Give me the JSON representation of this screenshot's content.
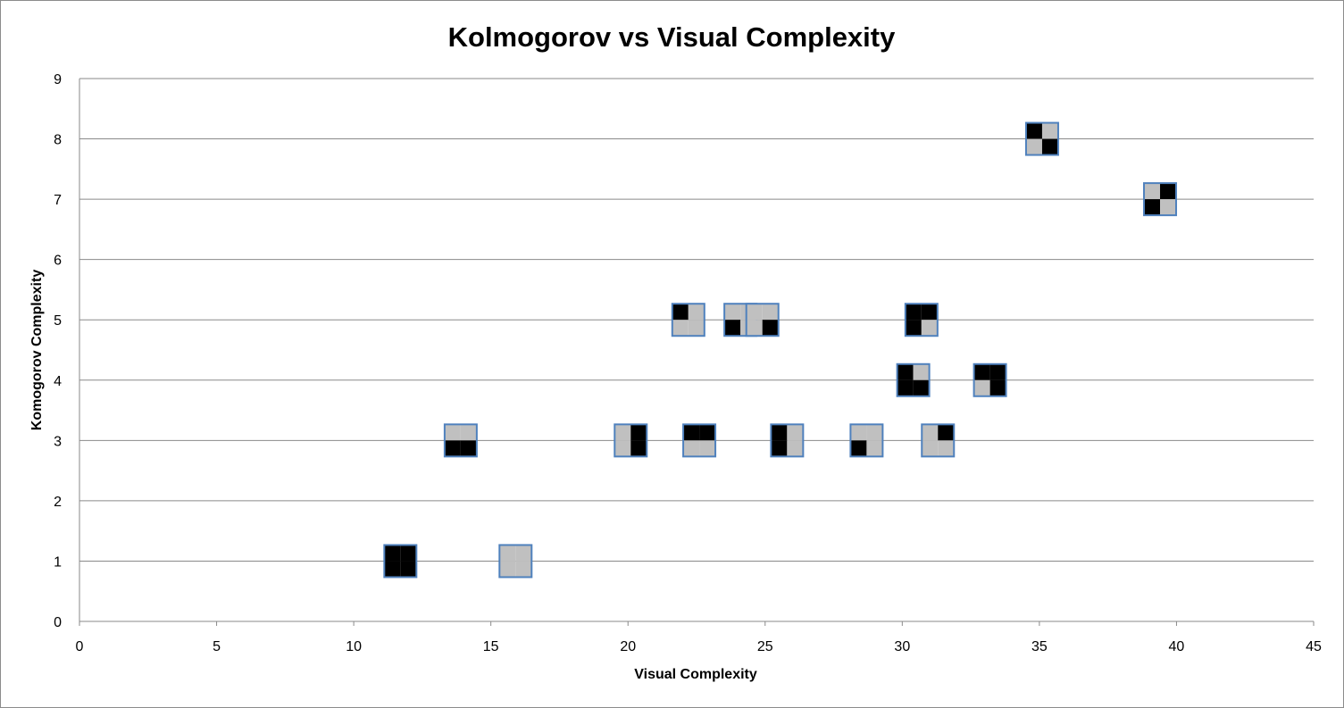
{
  "chart_data": {
    "type": "scatter",
    "title": "Kolmogorov vs Visual Complexity",
    "xlabel": "Visual Complexity",
    "ylabel": "Komogorov Complexity",
    "xlim": [
      0,
      45
    ],
    "ylim": [
      0,
      9
    ],
    "xticks": [
      0,
      5,
      10,
      15,
      20,
      25,
      30,
      35,
      40,
      45
    ],
    "yticks": [
      0,
      1,
      2,
      3,
      4,
      5,
      6,
      7,
      8,
      9
    ],
    "grid": "horizontal",
    "legend": "none",
    "marker_style": "2x2 pixel pattern tile (1 = black, 0 = grey)",
    "colors": {
      "black": "#000000",
      "grey": "#c0c0c0",
      "marker_border": "#4f81bd",
      "gridline": "#8a8a8a"
    },
    "points": [
      {
        "x": 11.7,
        "y": 1,
        "pattern": [
          1,
          1,
          1,
          1
        ]
      },
      {
        "x": 15.9,
        "y": 1,
        "pattern": [
          0,
          0,
          0,
          0
        ]
      },
      {
        "x": 13.9,
        "y": 3,
        "pattern": [
          0,
          0,
          1,
          1
        ]
      },
      {
        "x": 20.1,
        "y": 3,
        "pattern": [
          0,
          1,
          0,
          1
        ]
      },
      {
        "x": 22.6,
        "y": 3,
        "pattern": [
          1,
          1,
          0,
          0
        ]
      },
      {
        "x": 25.8,
        "y": 3,
        "pattern": [
          1,
          0,
          1,
          0
        ]
      },
      {
        "x": 28.7,
        "y": 3,
        "pattern": [
          0,
          0,
          1,
          0
        ]
      },
      {
        "x": 31.3,
        "y": 3,
        "pattern": [
          0,
          1,
          0,
          0
        ]
      },
      {
        "x": 30.4,
        "y": 4,
        "pattern": [
          1,
          0,
          1,
          1
        ]
      },
      {
        "x": 33.2,
        "y": 4,
        "pattern": [
          1,
          1,
          0,
          1
        ]
      },
      {
        "x": 22.2,
        "y": 5,
        "pattern": [
          1,
          0,
          0,
          0
        ]
      },
      {
        "x": 24.1,
        "y": 5,
        "pattern": [
          0,
          0,
          1,
          0
        ]
      },
      {
        "x": 24.9,
        "y": 5,
        "pattern": [
          0,
          0,
          0,
          1
        ]
      },
      {
        "x": 30.7,
        "y": 5,
        "pattern": [
          1,
          1,
          1,
          0
        ]
      },
      {
        "x": 39.4,
        "y": 7,
        "pattern": [
          0,
          1,
          1,
          0
        ]
      },
      {
        "x": 35.1,
        "y": 8,
        "pattern": [
          1,
          0,
          0,
          1
        ]
      }
    ]
  }
}
